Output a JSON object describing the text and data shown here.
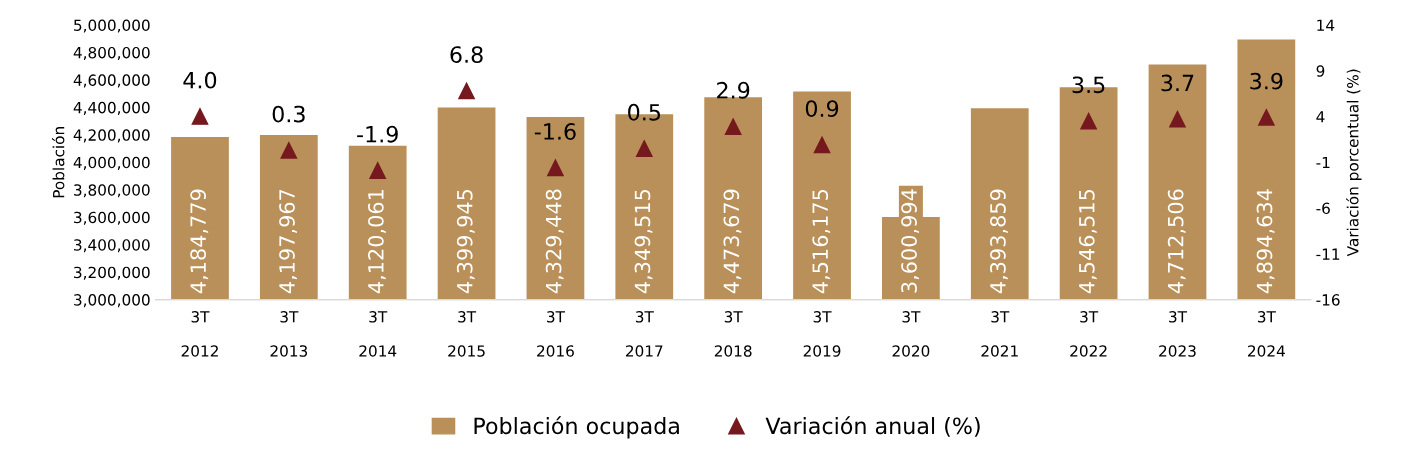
{
  "chart_data": {
    "type": "bar",
    "categories": [
      "3T\n\n2012",
      "3T\n\n2013",
      "3T\n\n2014",
      "3T\n\n2015",
      "3T\n\n2016",
      "3T\n\n2017",
      "3T\n\n2018",
      "3T\n\n2019",
      "3T\n\n2020",
      "3T\n\n2021",
      "3T\n\n2022",
      "3T\n\n2023",
      "3T\n\n2024"
    ],
    "ylabel": "Población",
    "y2label": "Variación porcentual (%)",
    "ylim": [
      3000000,
      5000000
    ],
    "yticks": [
      {
        "value": 3000000,
        "label": "3,000,000"
      },
      {
        "value": 3200000,
        "label": "3,200,000"
      },
      {
        "value": 3400000,
        "label": "3,400,000"
      },
      {
        "value": 3600000,
        "label": "3,600,000"
      },
      {
        "value": 3800000,
        "label": "3,800,000"
      },
      {
        "value": 4000000,
        "label": "4,000,000"
      },
      {
        "value": 4200000,
        "label": "4,200,000"
      },
      {
        "value": 4400000,
        "label": "4,400,000"
      },
      {
        "value": 4600000,
        "label": "4,600,000"
      },
      {
        "value": 4800000,
        "label": "4,800,000"
      },
      {
        "value": 5000000,
        "label": "5,000,000"
      }
    ],
    "y2lim": [
      -16,
      14
    ],
    "y2ticks": [
      -16,
      -11,
      -6,
      -1,
      4,
      9,
      14
    ],
    "series": [
      {
        "name": "Población ocupada",
        "type": "bar",
        "color": "#b99059",
        "values": [
          4184779,
          4197967,
          4120061,
          4399945,
          4329448,
          4349515,
          4473679,
          4516175,
          3600994,
          4393859,
          4546515,
          4712506,
          4894634
        ],
        "value_labels": [
          "4,184,779",
          "4,197,967",
          "4,120,061",
          "4,399,945",
          "4,329,448",
          "4,349,515",
          "4,473,679",
          "4,516,175",
          "3,600,994",
          "4,393,859",
          "4,546,515",
          "4,712,506",
          "4,894,634"
        ]
      },
      {
        "name": "Variación anual (%)",
        "type": "scatter",
        "axis": "y2",
        "marker": "triangle",
        "color": "#76191e",
        "values": [
          4.0,
          0.3,
          -1.9,
          6.8,
          -1.6,
          0.5,
          2.9,
          0.9,
          null,
          null,
          3.5,
          3.7,
          3.9
        ],
        "value_labels": [
          "4.0",
          "0.3",
          "-1.9",
          "6.8",
          "-1.6",
          "0.5",
          "2.9",
          "0.9",
          null,
          null,
          "3.5",
          "3.7",
          "3.9"
        ]
      }
    ],
    "legend": "bottom",
    "grid": false
  }
}
